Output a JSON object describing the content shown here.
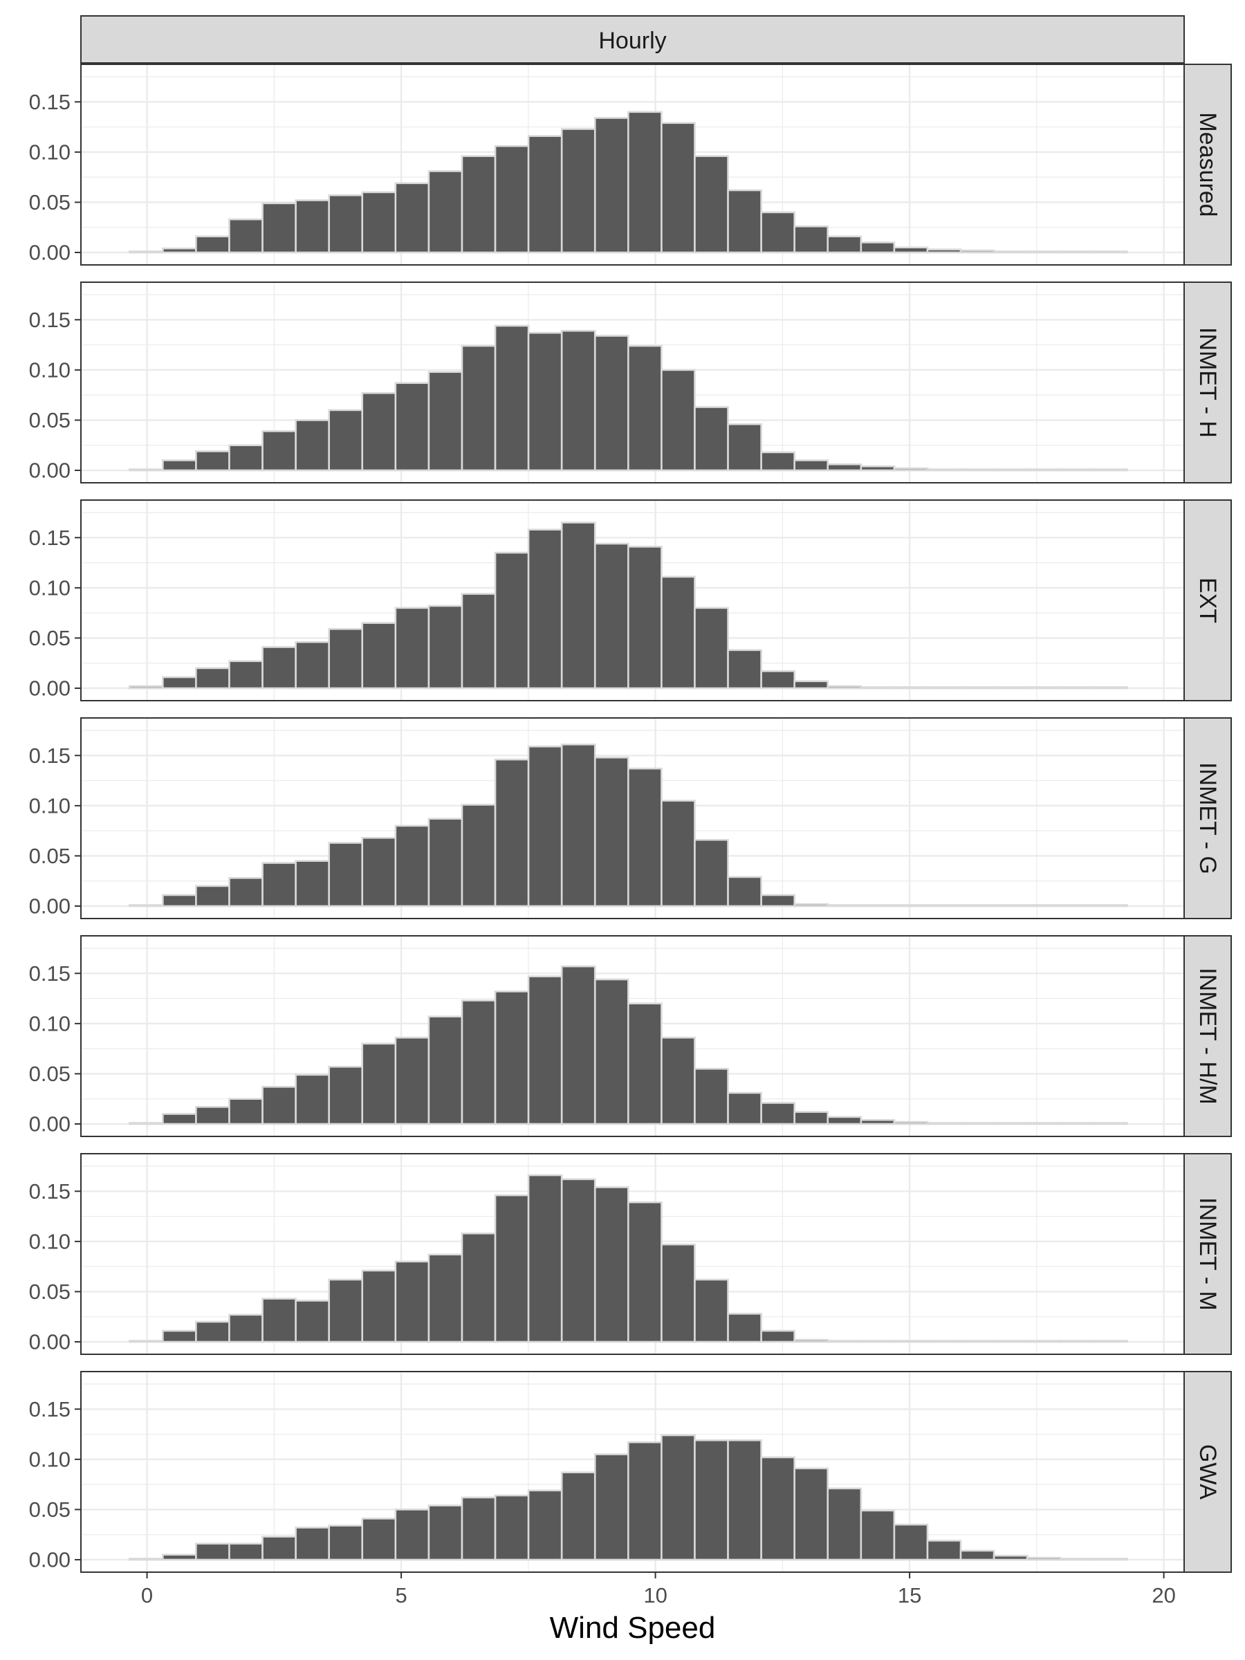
{
  "chart_data": {
    "type": "bar",
    "chart_kind": "faceted histogram",
    "column_facet": "Hourly",
    "xlabel": "Wind Speed",
    "ylabel": "",
    "xlim": [
      -1.3,
      20.4
    ],
    "ylim": [
      0,
      0.175
    ],
    "x_ticks": [
      "0",
      "5",
      "10",
      "15",
      "20"
    ],
    "y_ticks": [
      "0.00",
      "0.05",
      "0.10",
      "0.15"
    ],
    "grid": true,
    "bin_width": 0.654,
    "bin_centers": [
      -0.017,
      0.637,
      1.291,
      1.945,
      2.599,
      3.253,
      3.907,
      4.561,
      5.215,
      5.869,
      6.523,
      7.177,
      7.831,
      8.485,
      9.139,
      9.793,
      10.447,
      11.101,
      11.755,
      12.409,
      13.063,
      13.717,
      14.371,
      15.025,
      15.679,
      16.333,
      16.987,
      17.641,
      18.295,
      18.949
    ],
    "colors": {
      "bar_fill": "#595959",
      "bar_border": "#d9d9d9",
      "strip_fill": "#d9d9d9",
      "panel_border": "#333333",
      "grid": "#ebebeb"
    },
    "series": [
      {
        "name": "Measured",
        "values": [
          0.001,
          0.004,
          0.016,
          0.033,
          0.049,
          0.052,
          0.057,
          0.06,
          0.069,
          0.081,
          0.096,
          0.106,
          0.116,
          0.123,
          0.134,
          0.14,
          0.129,
          0.096,
          0.062,
          0.04,
          0.026,
          0.016,
          0.01,
          0.005,
          0.003,
          0.002,
          0.001,
          0.001,
          0.001,
          0.001
        ]
      },
      {
        "name": "INMET - H",
        "values": [
          0.001,
          0.01,
          0.019,
          0.025,
          0.039,
          0.05,
          0.06,
          0.077,
          0.087,
          0.098,
          0.124,
          0.144,
          0.137,
          0.139,
          0.134,
          0.124,
          0.1,
          0.063,
          0.046,
          0.018,
          0.01,
          0.006,
          0.004,
          0.002,
          0.001,
          0.001,
          0.001,
          0.001,
          0.001,
          0.001
        ]
      },
      {
        "name": "EXT",
        "values": [
          0.002,
          0.011,
          0.02,
          0.027,
          0.041,
          0.046,
          0.059,
          0.065,
          0.08,
          0.082,
          0.094,
          0.135,
          0.158,
          0.165,
          0.144,
          0.141,
          0.111,
          0.08,
          0.038,
          0.017,
          0.007,
          0.002,
          0.001,
          0.001,
          0.001,
          0.001,
          0.001,
          0.001,
          0.001,
          0.001
        ]
      },
      {
        "name": "INMET - G",
        "values": [
          0.001,
          0.011,
          0.02,
          0.028,
          0.043,
          0.045,
          0.063,
          0.068,
          0.08,
          0.087,
          0.101,
          0.146,
          0.159,
          0.161,
          0.148,
          0.137,
          0.105,
          0.066,
          0.029,
          0.011,
          0.002,
          0.001,
          0.001,
          0.001,
          0.001,
          0.001,
          0.001,
          0.001,
          0.001,
          0.001
        ]
      },
      {
        "name": "INMET - H/M",
        "values": [
          0.001,
          0.01,
          0.017,
          0.025,
          0.037,
          0.049,
          0.057,
          0.08,
          0.086,
          0.107,
          0.123,
          0.132,
          0.147,
          0.157,
          0.144,
          0.12,
          0.086,
          0.055,
          0.031,
          0.021,
          0.012,
          0.007,
          0.004,
          0.002,
          0.001,
          0.001,
          0.001,
          0.001,
          0.001,
          0.001
        ]
      },
      {
        "name": "INMET - M",
        "values": [
          0.001,
          0.011,
          0.02,
          0.027,
          0.043,
          0.041,
          0.062,
          0.071,
          0.08,
          0.087,
          0.108,
          0.146,
          0.166,
          0.162,
          0.154,
          0.139,
          0.097,
          0.062,
          0.028,
          0.011,
          0.002,
          0.001,
          0.001,
          0.001,
          0.001,
          0.001,
          0.001,
          0.001,
          0.001,
          0.001
        ]
      },
      {
        "name": "GWA",
        "values": [
          0.001,
          0.005,
          0.016,
          0.016,
          0.023,
          0.032,
          0.034,
          0.041,
          0.05,
          0.054,
          0.062,
          0.064,
          0.069,
          0.087,
          0.105,
          0.117,
          0.124,
          0.119,
          0.119,
          0.102,
          0.091,
          0.071,
          0.049,
          0.035,
          0.019,
          0.009,
          0.004,
          0.002,
          0.001,
          0.001
        ]
      }
    ]
  }
}
